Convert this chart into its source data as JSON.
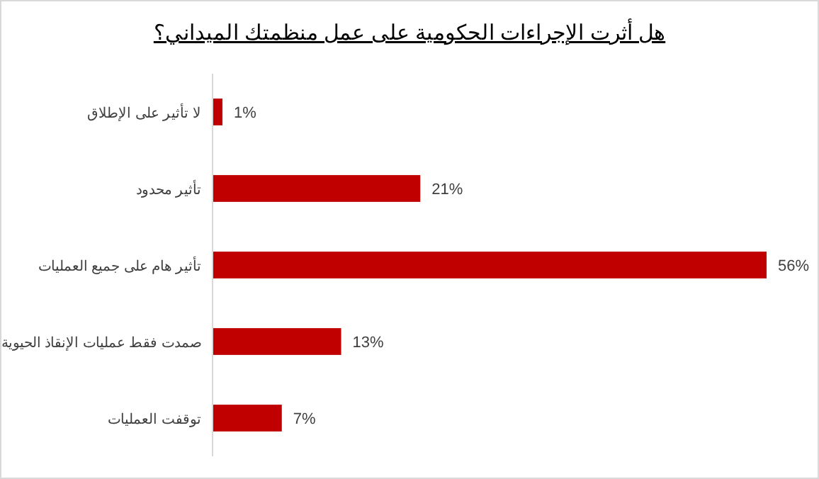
{
  "chart_data": {
    "type": "bar",
    "orientation": "horizontal",
    "title": "هل أثرت الإجراءات الحكومية على عمل منظمتك الميداني؟",
    "categories": [
      "لا تأثير على الإطلاق",
      "تأثير محدود",
      "تأثير هام على جميع العمليات",
      "صمدت فقط عمليات الإنقاذ الحيوية",
      "توقفت العمليات"
    ],
    "values": [
      1,
      21,
      56,
      13,
      7
    ],
    "value_labels": [
      "1%",
      "21%",
      "56%",
      "13%",
      "7%"
    ],
    "color": "#c00000"
  }
}
